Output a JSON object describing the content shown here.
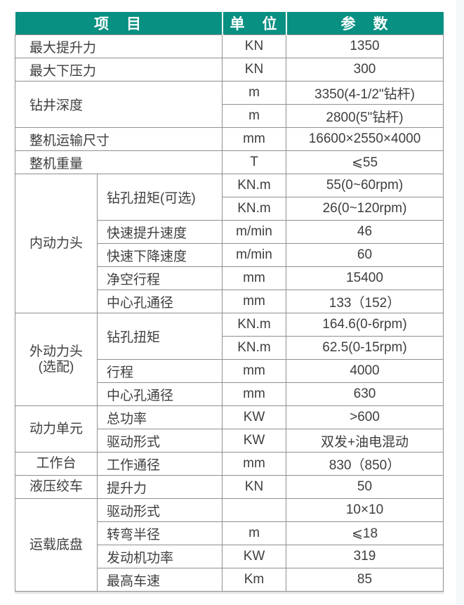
{
  "page": {
    "background": "#ffffff",
    "right_stripe_color": "#f4faf9"
  },
  "colors": {
    "header_bg": "#089082",
    "header_text": "#ffffff",
    "grid_border": "#8f8f8f",
    "body_text": "#3e3e3e"
  },
  "table": {
    "headers": [
      {
        "text": "项　目"
      },
      {
        "text": "单　位"
      },
      {
        "text": "参　数"
      }
    ],
    "rows": [
      [
        {
          "kind": "item",
          "text": "最大提升力",
          "colspan": 2
        },
        {
          "kind": "unit",
          "text": "KN"
        },
        {
          "kind": "param",
          "text": "1350"
        }
      ],
      [
        {
          "kind": "item",
          "text": "最大下压力",
          "colspan": 2
        },
        {
          "kind": "unit",
          "text": "KN"
        },
        {
          "kind": "param",
          "text": "300"
        }
      ],
      [
        {
          "kind": "item",
          "text": "钻井深度",
          "colspan": 2,
          "rowspan": 2
        },
        {
          "kind": "unit",
          "text": "m"
        },
        {
          "kind": "param",
          "text": "3350(4-1/2\"钻杆)"
        }
      ],
      [
        {
          "kind": "unit",
          "text": "m"
        },
        {
          "kind": "param",
          "text": "2800(5\"钻杆)"
        }
      ],
      [
        {
          "kind": "item",
          "text": "整机运输尺寸",
          "colspan": 2
        },
        {
          "kind": "unit",
          "text": "mm"
        },
        {
          "kind": "param",
          "text": "16600×2550×4000"
        }
      ],
      [
        {
          "kind": "item",
          "text": "整机重量",
          "colspan": 2
        },
        {
          "kind": "unit",
          "text": "T"
        },
        {
          "kind": "param",
          "text": "⩽55"
        }
      ],
      [
        {
          "kind": "group",
          "text": "内动力头",
          "rowspan": 6
        },
        {
          "kind": "item",
          "text": "钻孔扭矩(可选)",
          "rowspan": 2
        },
        {
          "kind": "unit",
          "text": "KN.m"
        },
        {
          "kind": "param",
          "text": "55(0~60rpm)"
        }
      ],
      [
        {
          "kind": "unit",
          "text": "KN.m"
        },
        {
          "kind": "param",
          "text": "26(0~120rpm)"
        }
      ],
      [
        {
          "kind": "item",
          "text": "快速提升速度"
        },
        {
          "kind": "unit",
          "text": "m/min"
        },
        {
          "kind": "param",
          "text": "46"
        }
      ],
      [
        {
          "kind": "item",
          "text": "快速下降速度"
        },
        {
          "kind": "unit",
          "text": "m/min"
        },
        {
          "kind": "param",
          "text": "60"
        }
      ],
      [
        {
          "kind": "item",
          "text": "净空行程"
        },
        {
          "kind": "unit",
          "text": "mm"
        },
        {
          "kind": "param",
          "text": "15400"
        }
      ],
      [
        {
          "kind": "item",
          "text": "中心孔通径"
        },
        {
          "kind": "unit",
          "text": "mm"
        },
        {
          "kind": "param",
          "text": "133（152）"
        }
      ],
      [
        {
          "kind": "group",
          "text": "外动力头\n(选配)",
          "rowspan": 4
        },
        {
          "kind": "item",
          "text": "钻孔扭矩",
          "rowspan": 2
        },
        {
          "kind": "unit",
          "text": "KN.m"
        },
        {
          "kind": "param",
          "text": "164.6(0-6rpm)"
        }
      ],
      [
        {
          "kind": "unit",
          "text": "KN.m"
        },
        {
          "kind": "param",
          "text": "62.5(0-15rpm)"
        }
      ],
      [
        {
          "kind": "item",
          "text": "行程"
        },
        {
          "kind": "unit",
          "text": "mm"
        },
        {
          "kind": "param",
          "text": "4000"
        }
      ],
      [
        {
          "kind": "item",
          "text": "中心孔通径"
        },
        {
          "kind": "unit",
          "text": "mm"
        },
        {
          "kind": "param",
          "text": "630"
        }
      ],
      [
        {
          "kind": "group",
          "text": "动力单元",
          "rowspan": 2
        },
        {
          "kind": "item",
          "text": "总功率"
        },
        {
          "kind": "unit",
          "text": "KW"
        },
        {
          "kind": "param",
          "text": ">600"
        }
      ],
      [
        {
          "kind": "item",
          "text": "驱动形式"
        },
        {
          "kind": "unit",
          "text": "KW"
        },
        {
          "kind": "param",
          "text": "双发+油电混动"
        }
      ],
      [
        {
          "kind": "group",
          "text": "工作台"
        },
        {
          "kind": "item",
          "text": "工作通径"
        },
        {
          "kind": "unit",
          "text": "mm"
        },
        {
          "kind": "param",
          "text": "830（850）"
        }
      ],
      [
        {
          "kind": "group",
          "text": "液压绞车"
        },
        {
          "kind": "item",
          "text": "提升力"
        },
        {
          "kind": "unit",
          "text": "KN"
        },
        {
          "kind": "param",
          "text": "50"
        }
      ],
      [
        {
          "kind": "group",
          "text": "运载底盘",
          "rowspan": 4
        },
        {
          "kind": "item",
          "text": "驱动形式"
        },
        {
          "kind": "unit",
          "text": ""
        },
        {
          "kind": "param",
          "text": "10×10"
        }
      ],
      [
        {
          "kind": "item",
          "text": "转弯半径"
        },
        {
          "kind": "unit",
          "text": "m"
        },
        {
          "kind": "param",
          "text": "⩽18"
        }
      ],
      [
        {
          "kind": "item",
          "text": "发动机功率"
        },
        {
          "kind": "unit",
          "text": "KW"
        },
        {
          "kind": "param",
          "text": "319"
        }
      ],
      [
        {
          "kind": "item",
          "text": "最高车速"
        },
        {
          "kind": "unit",
          "text": "Km"
        },
        {
          "kind": "param",
          "text": "85"
        }
      ]
    ]
  }
}
